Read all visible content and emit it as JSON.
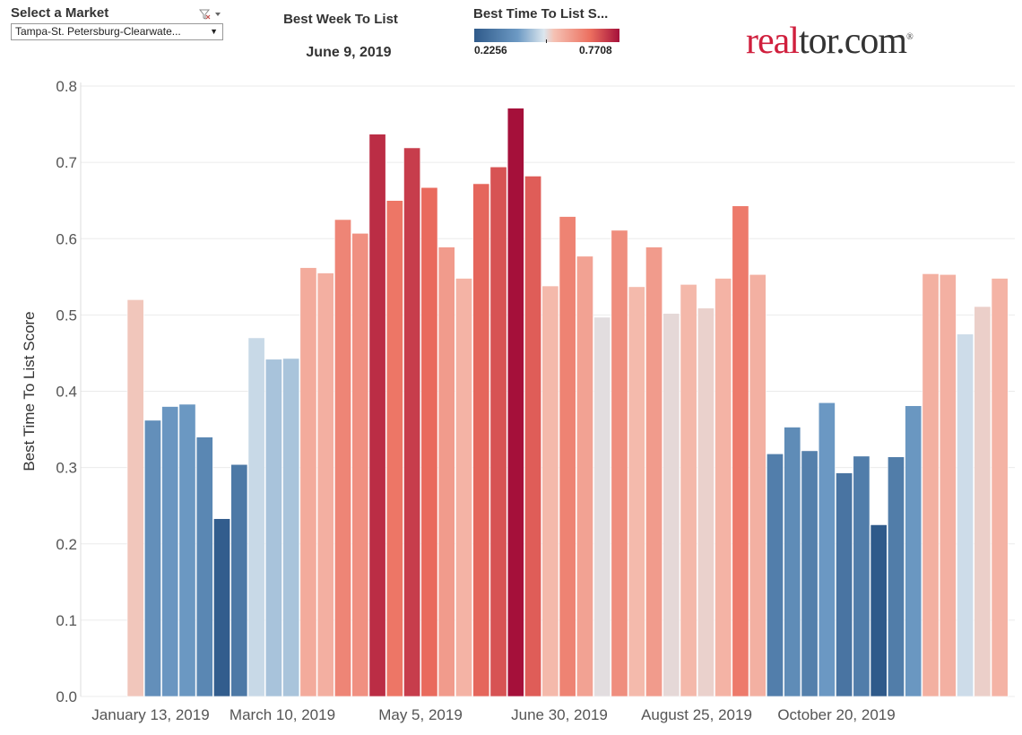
{
  "filter": {
    "title": "Select a Market",
    "selected": "Tampa-St. Petersburg-Clearwate...",
    "filter_icon": "filter-clear-icon",
    "caret_icon": "dropdown-caret-icon"
  },
  "best_week": {
    "title": "Best Week To List",
    "date": "June 9, 2019"
  },
  "legend": {
    "title": "Best Time To List S...",
    "min": "0.2256",
    "max": "0.7708",
    "colors": [
      "#2f5a8a",
      "#6d9ac4",
      "#dbe6ee",
      "#f5c1b3",
      "#ec6f5f",
      "#a5103a"
    ]
  },
  "logo": {
    "red_part": "real",
    "dark_part": "tor.com",
    "mark": "®"
  },
  "chart_data": {
    "type": "bar",
    "title": "",
    "xlabel": "",
    "ylabel": "Best Time To List Score",
    "ylim": [
      0,
      0.8
    ],
    "yticks": [
      "0.0",
      "0.1",
      "0.2",
      "0.3",
      "0.4",
      "0.5",
      "0.6",
      "0.7",
      "0.8"
    ],
    "grid": true,
    "x_tick_labels": [
      "January 13, 2019",
      "March 10, 2019",
      "May 5, 2019",
      "June 30, 2019",
      "August 25, 2019",
      "October 20, 2019"
    ],
    "values": [
      0.52,
      0.362,
      0.38,
      0.383,
      0.34,
      0.233,
      0.304,
      0.47,
      0.442,
      0.443,
      0.562,
      0.555,
      0.625,
      0.607,
      0.737,
      0.65,
      0.719,
      0.667,
      0.589,
      0.548,
      0.672,
      0.694,
      0.771,
      0.682,
      0.538,
      0.629,
      0.577,
      0.497,
      0.611,
      0.537,
      0.589,
      0.502,
      0.54,
      0.509,
      0.548,
      0.643,
      0.553,
      0.318,
      0.353,
      0.322,
      0.385,
      0.293,
      0.315,
      0.225,
      0.314,
      0.381,
      0.554,
      0.553,
      0.475,
      0.511,
      0.548
    ],
    "color_range": [
      0.2256,
      0.7708
    ]
  }
}
